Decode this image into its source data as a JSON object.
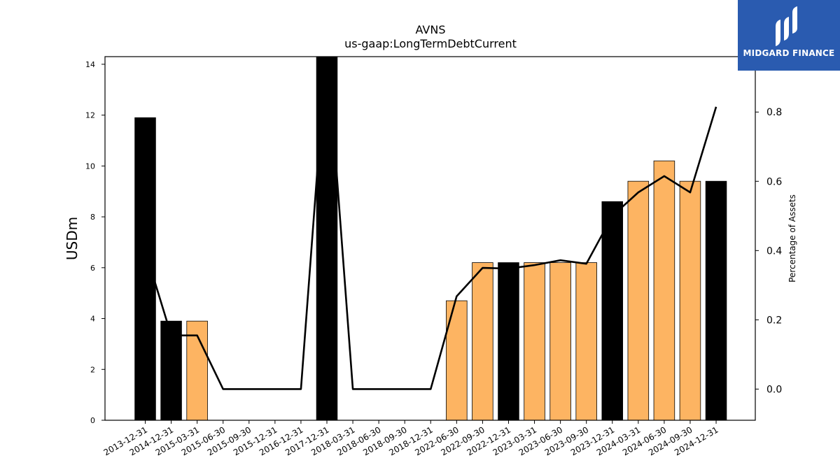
{
  "chart_data": {
    "type": "bar",
    "title": "AVNS",
    "subtitle": "us-gaap:LongTermDebtCurrent",
    "ylabel": "USDm",
    "y2label": "Percentage of Assets",
    "categories": [
      "2013-12-31",
      "2014-12-31",
      "2015-03-31",
      "2015-06-30",
      "2015-09-30",
      "2015-12-31",
      "2016-12-31",
      "2017-12-31",
      "2018-03-31",
      "2018-06-30",
      "2018-09-30",
      "2018-12-31",
      "2022-06-30",
      "2022-09-30",
      "2022-12-31",
      "2023-03-31",
      "2023-06-30",
      "2023-09-30",
      "2023-12-31",
      "2024-03-31",
      "2024-06-30",
      "2024-09-30",
      "2024-12-31"
    ],
    "values": [
      11.9,
      3.9,
      3.9,
      0,
      0,
      0,
      0,
      14.5,
      0,
      0,
      0,
      0,
      4.7,
      6.2,
      6.2,
      6.2,
      6.2,
      6.2,
      8.6,
      9.4,
      10.2,
      9.4,
      9.4
    ],
    "bar_kind": [
      "annual",
      "annual",
      "quarter",
      "quarter",
      "quarter",
      "quarter",
      "annual",
      "annual",
      "quarter",
      "quarter",
      "quarter",
      "annual",
      "quarter",
      "quarter",
      "annual",
      "quarter",
      "quarter",
      "quarter",
      "annual",
      "quarter",
      "quarter",
      "quarter",
      "annual"
    ],
    "pct_assets": [
      0.4,
      0.155,
      0.155,
      0.0,
      0.0,
      0.0,
      0.0,
      1.0,
      0.0,
      0.0,
      0.0,
      0.0,
      0.268,
      0.35,
      0.348,
      0.358,
      0.372,
      0.362,
      0.5,
      0.568,
      0.615,
      0.568,
      0.815
    ],
    "ylim": [
      0,
      14.3
    ],
    "yticks": [
      0,
      2,
      4,
      6,
      8,
      10,
      12,
      14
    ],
    "y2lim": [
      -0.09,
      0.96
    ],
    "y2ticks": [
      0.0,
      0.2,
      0.4,
      0.6,
      0.8
    ],
    "y2tick_labels": [
      "0.0",
      "0.2",
      "0.4",
      "0.6",
      "0.8"
    ],
    "colors": {
      "annual": "#000000",
      "quarter": "#fdb462",
      "line": "#000000"
    },
    "grid": false,
    "legend": "none"
  },
  "logo": {
    "text": "MIDGARD FINANCE"
  }
}
